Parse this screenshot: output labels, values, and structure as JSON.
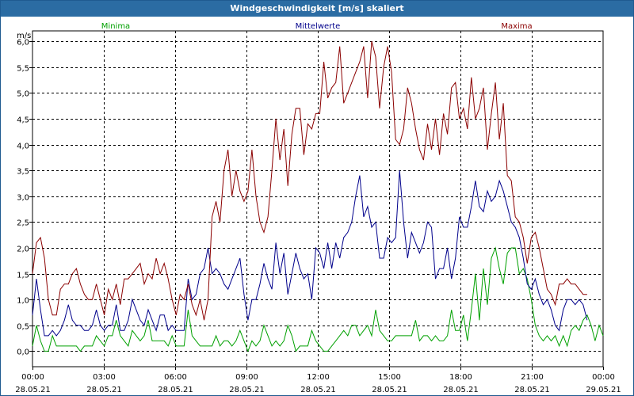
{
  "window": {
    "title": "Windgeschwindigkeit [m/s] skaliert"
  },
  "colors": {
    "min": "#00a000",
    "mean": "#00008b",
    "max": "#8b0000",
    "grid": "#000000",
    "titlebar": "#2b6ca3"
  },
  "chart_data": {
    "type": "line",
    "title": "Windgeschwindigkeit [m/s] skaliert",
    "ylabel": "m/s",
    "ylim": [
      -0.3,
      6.2
    ],
    "yticks": [
      0.0,
      0.5,
      1.0,
      1.5,
      2.0,
      2.5,
      3.0,
      3.5,
      4.0,
      4.5,
      5.0,
      5.5,
      6.0
    ],
    "ytick_labels": [
      "0,0",
      "0,5",
      "1,0",
      "1,5",
      "2,0",
      "2,5",
      "3,0",
      "3,5",
      "4,0",
      "4,5",
      "5,0",
      "5,5",
      "6,0"
    ],
    "xlim": [
      0,
      24
    ],
    "xticks": [
      {
        "x": 0,
        "time": "00:00",
        "date": "28.05.21"
      },
      {
        "x": 3,
        "time": "03:00",
        "date": "28.05.21"
      },
      {
        "x": 6,
        "time": "06:00",
        "date": "28.05.21"
      },
      {
        "x": 9,
        "time": "09:00",
        "date": "28.05.21"
      },
      {
        "x": 12,
        "time": "12:00",
        "date": "28.05.21"
      },
      {
        "x": 15,
        "time": "15:00",
        "date": "28.05.21"
      },
      {
        "x": 18,
        "time": "18:00",
        "date": "28.05.21"
      },
      {
        "x": 21,
        "time": "21:00",
        "date": "28.05.21"
      },
      {
        "x": 24,
        "time": "00:00",
        "date": "29.05.21"
      }
    ],
    "legend": [
      "Minima",
      "Mittelwerte",
      "Maxima"
    ],
    "interval_hours": 0.1667,
    "series": [
      {
        "name": "Minima",
        "color": "#00a000",
        "values": [
          0.1,
          0.5,
          0.2,
          0.0,
          0.0,
          0.3,
          0.1,
          0.1,
          0.1,
          0.1,
          0.1,
          0.1,
          0.0,
          0.1,
          0.1,
          0.1,
          0.3,
          0.2,
          0.1,
          0.3,
          0.3,
          0.6,
          0.3,
          0.2,
          0.1,
          0.4,
          0.3,
          0.2,
          0.3,
          0.6,
          0.2,
          0.2,
          0.2,
          0.2,
          0.1,
          0.3,
          0.1,
          0.1,
          0.1,
          0.8,
          0.3,
          0.2,
          0.1,
          0.1,
          0.1,
          0.1,
          0.3,
          0.1,
          0.2,
          0.2,
          0.1,
          0.2,
          0.4,
          0.2,
          0.0,
          0.2,
          0.1,
          0.2,
          0.5,
          0.3,
          0.1,
          0.2,
          0.1,
          0.2,
          0.5,
          0.3,
          0.0,
          0.1,
          0.1,
          0.1,
          0.4,
          0.2,
          0.1,
          0.0,
          0.0,
          0.1,
          0.2,
          0.3,
          0.4,
          0.3,
          0.5,
          0.5,
          0.3,
          0.4,
          0.5,
          0.3,
          0.8,
          0.4,
          0.3,
          0.2,
          0.2,
          0.3,
          0.3,
          0.3,
          0.3,
          0.3,
          0.6,
          0.2,
          0.3,
          0.3,
          0.2,
          0.3,
          0.2,
          0.2,
          0.3,
          0.8,
          0.4,
          0.4,
          0.7,
          0.2,
          0.8,
          1.5,
          0.6,
          1.6,
          0.9,
          1.8,
          2.0,
          1.6,
          1.3,
          1.9,
          2.0,
          2.0,
          1.5,
          1.6,
          1.4,
          1.0,
          0.5,
          0.3,
          0.2,
          0.3,
          0.2,
          0.3,
          0.1,
          0.3,
          0.1,
          0.4,
          0.5,
          0.4,
          0.6,
          0.7,
          0.5,
          0.2,
          0.5,
          0.3
        ]
      },
      {
        "name": "Mittelwerte",
        "color": "#00008b",
        "values": [
          0.7,
          1.4,
          0.8,
          0.3,
          0.3,
          0.4,
          0.3,
          0.4,
          0.6,
          0.9,
          0.6,
          0.5,
          0.5,
          0.4,
          0.4,
          0.5,
          0.8,
          0.5,
          0.4,
          0.5,
          0.5,
          0.9,
          0.4,
          0.4,
          0.6,
          1.0,
          0.8,
          0.6,
          0.5,
          0.8,
          0.6,
          0.4,
          0.7,
          0.7,
          0.4,
          0.5,
          0.4,
          0.4,
          0.4,
          1.4,
          1.0,
          1.1,
          1.5,
          1.6,
          2.0,
          1.5,
          1.6,
          1.5,
          1.3,
          1.2,
          1.4,
          1.6,
          1.8,
          1.1,
          0.6,
          1.0,
          1.0,
          1.3,
          1.7,
          1.4,
          1.2,
          2.1,
          1.5,
          1.9,
          1.1,
          1.5,
          1.9,
          1.6,
          1.4,
          1.5,
          1.0,
          2.0,
          1.9,
          1.6,
          2.1,
          1.6,
          2.1,
          1.8,
          2.2,
          2.3,
          2.5,
          3.0,
          3.4,
          2.6,
          2.8,
          2.4,
          2.5,
          1.8,
          1.8,
          2.2,
          2.1,
          2.2,
          3.5,
          2.5,
          1.8,
          2.3,
          2.1,
          1.9,
          2.1,
          2.5,
          2.4,
          1.4,
          1.6,
          1.6,
          2.0,
          1.4,
          1.8,
          2.6,
          2.4,
          2.4,
          2.8,
          3.3,
          2.8,
          2.7,
          3.1,
          2.9,
          3.0,
          3.3,
          3.1,
          2.8,
          2.5,
          2.4,
          2.2,
          1.8,
          1.3,
          1.2,
          1.4,
          1.1,
          0.9,
          1.0,
          0.8,
          0.5,
          0.4,
          0.8,
          1.0,
          1.0,
          0.9,
          1.0,
          0.9,
          0.6
        ]
      },
      {
        "name": "Maxima",
        "color": "#8b0000",
        "values": [
          1.5,
          2.1,
          2.2,
          1.8,
          1.0,
          0.7,
          0.7,
          1.2,
          1.3,
          1.3,
          1.5,
          1.6,
          1.3,
          1.1,
          1.0,
          1.0,
          1.3,
          1.0,
          0.7,
          1.2,
          1.0,
          1.3,
          0.9,
          1.4,
          1.4,
          1.5,
          1.6,
          1.7,
          1.3,
          1.5,
          1.4,
          1.8,
          1.5,
          1.7,
          1.4,
          1.0,
          0.7,
          1.1,
          1.0,
          1.3,
          0.9,
          0.7,
          1.0,
          0.6,
          1.0,
          2.6,
          2.9,
          2.5,
          3.5,
          3.9,
          3.0,
          3.5,
          3.1,
          2.9,
          3.1,
          3.9,
          3.0,
          2.5,
          2.3,
          2.6,
          3.5,
          4.5,
          3.7,
          4.3,
          3.2,
          4.2,
          4.7,
          4.7,
          3.8,
          4.4,
          4.3,
          4.6,
          4.6,
          5.6,
          4.9,
          5.1,
          5.2,
          5.9,
          4.8,
          5.0,
          5.2,
          5.4,
          5.6,
          5.9,
          4.9,
          6.0,
          5.7,
          4.7,
          5.5,
          5.9,
          5.4,
          4.1,
          4.0,
          4.3,
          5.1,
          4.8,
          4.3,
          3.9,
          3.7,
          4.4,
          3.9,
          4.5,
          3.8,
          4.6,
          4.2,
          5.1,
          5.2,
          4.5,
          4.7,
          4.3,
          5.3,
          4.5,
          4.7,
          5.1,
          3.9,
          4.6,
          5.2,
          4.1,
          4.8,
          3.4,
          3.3,
          2.6,
          2.5,
          2.2,
          1.7,
          2.2,
          2.3,
          2.0,
          1.6,
          1.2,
          1.1,
          0.9,
          1.3,
          1.3,
          1.4,
          1.3,
          1.3,
          1.2,
          1.1,
          1.1
        ]
      }
    ]
  }
}
